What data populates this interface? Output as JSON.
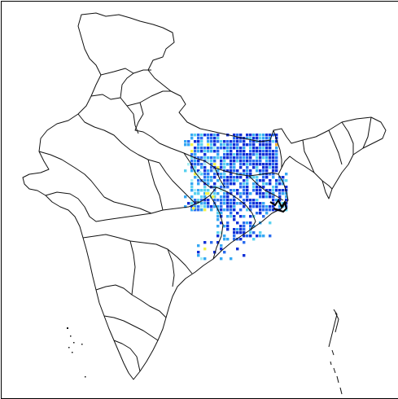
{
  "map": {
    "region": "India",
    "colors": {
      "outline": "#111111",
      "background": "#ffffff",
      "dark_blue": "#1030d8",
      "blue": "#2a6cf0",
      "light_blue": "#36a8f4",
      "cyan": "#5ad2f0",
      "pale_cyan": "#a8eef4",
      "yellow": "#f2f24a",
      "orange": "#f4b230"
    },
    "layers": [
      "state-boundaries",
      "gridded-data-overlay"
    ]
  }
}
